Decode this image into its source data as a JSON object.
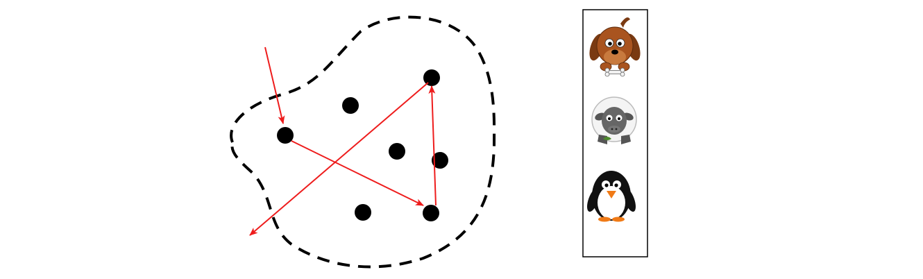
{
  "diagram": {
    "boundary": {
      "style": "dashed",
      "color": "#000000"
    },
    "dots": [
      {
        "id": "d1",
        "color": "#000000"
      },
      {
        "id": "d2",
        "color": "#000000"
      },
      {
        "id": "d3",
        "color": "#000000"
      },
      {
        "id": "d4",
        "color": "#000000"
      },
      {
        "id": "d5",
        "color": "#000000"
      },
      {
        "id": "d6",
        "color": "#000000"
      },
      {
        "id": "d7",
        "color": "#000000"
      }
    ],
    "arrows": [
      {
        "from": "outside-top",
        "to": "dot-left",
        "color": "#ee1c1c"
      },
      {
        "from": "dot-left",
        "to": "dot-bottom-right",
        "color": "#ee1c1c"
      },
      {
        "from": "dot-bottom-right",
        "to": "dot-top-right",
        "color": "#ee1c1c"
      },
      {
        "from": "dot-top-right",
        "to": "outside-bottom-left",
        "color": "#ee1c1c"
      }
    ],
    "legend_panel": {
      "items": [
        {
          "icon": "dog-icon",
          "color": "#9a4d1e"
        },
        {
          "icon": "sheep-icon",
          "color": "#666666"
        },
        {
          "icon": "penguin-icon",
          "color": "#111111"
        }
      ]
    }
  }
}
